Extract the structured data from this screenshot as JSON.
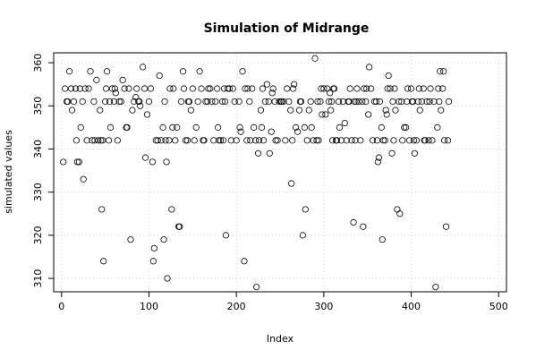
{
  "chart_data": {
    "type": "scatter",
    "title": "Simulation of Midrange",
    "xlabel": "Index",
    "ylabel": "simulated values",
    "xlim": [
      -9,
      509
    ],
    "ylim": [
      306.9,
      362.3
    ],
    "xticks": [
      0,
      100,
      200,
      300,
      400,
      500
    ],
    "yticks": [
      310,
      320,
      330,
      340,
      350,
      360
    ],
    "grid": true,
    "points": [
      [
        2,
        337
      ],
      [
        4,
        354
      ],
      [
        6,
        351
      ],
      [
        7,
        351
      ],
      [
        9,
        358
      ],
      [
        11,
        354
      ],
      [
        12,
        349
      ],
      [
        14,
        351
      ],
      [
        16,
        354
      ],
      [
        17,
        342
      ],
      [
        18,
        337
      ],
      [
        20,
        337
      ],
      [
        21,
        354
      ],
      [
        22,
        345
      ],
      [
        24,
        351
      ],
      [
        25,
        333
      ],
      [
        27,
        354
      ],
      [
        29,
        342
      ],
      [
        31,
        354
      ],
      [
        33,
        358
      ],
      [
        35,
        342
      ],
      [
        37,
        351
      ],
      [
        38,
        342
      ],
      [
        40,
        356
      ],
      [
        42,
        342
      ],
      [
        44,
        349
      ],
      [
        45,
        342
      ],
      [
        46,
        326
      ],
      [
        47,
        342
      ],
      [
        48,
        314
      ],
      [
        50,
        351
      ],
      [
        51,
        354
      ],
      [
        52,
        358
      ],
      [
        54,
        342
      ],
      [
        55,
        351
      ],
      [
        56,
        345
      ],
      [
        58,
        354
      ],
      [
        60,
        351
      ],
      [
        61,
        354
      ],
      [
        62,
        353
      ],
      [
        64,
        342
      ],
      [
        66,
        351
      ],
      [
        68,
        351
      ],
      [
        70,
        356
      ],
      [
        72,
        354
      ],
      [
        74,
        345
      ],
      [
        75,
        345
      ],
      [
        77,
        354
      ],
      [
        79,
        319
      ],
      [
        81,
        349
      ],
      [
        83,
        351
      ],
      [
        85,
        352
      ],
      [
        86,
        354
      ],
      [
        88,
        351
      ],
      [
        89,
        351
      ],
      [
        90,
        350
      ],
      [
        93,
        359
      ],
      [
        95,
        354
      ],
      [
        96,
        338
      ],
      [
        98,
        348
      ],
      [
        100,
        351
      ],
      [
        102,
        354
      ],
      [
        104,
        337
      ],
      [
        105,
        314
      ],
      [
        106,
        317
      ],
      [
        108,
        342
      ],
      [
        110,
        342
      ],
      [
        112,
        357
      ],
      [
        114,
        342
      ],
      [
        116,
        345
      ],
      [
        117,
        319
      ],
      [
        118,
        351
      ],
      [
        119,
        342
      ],
      [
        120,
        337
      ],
      [
        121,
        310
      ],
      [
        123,
        342
      ],
      [
        124,
        354
      ],
      [
        126,
        326
      ],
      [
        127,
        345
      ],
      [
        128,
        354
      ],
      [
        130,
        342
      ],
      [
        132,
        345
      ],
      [
        134,
        322
      ],
      [
        135,
        322
      ],
      [
        137,
        351
      ],
      [
        139,
        358
      ],
      [
        140,
        354
      ],
      [
        142,
        342
      ],
      [
        144,
        342
      ],
      [
        145,
        351
      ],
      [
        146,
        351
      ],
      [
        148,
        349
      ],
      [
        150,
        354
      ],
      [
        152,
        342
      ],
      [
        154,
        345
      ],
      [
        156,
        351
      ],
      [
        158,
        358
      ],
      [
        160,
        354
      ],
      [
        162,
        342
      ],
      [
        163,
        342
      ],
      [
        165,
        351
      ],
      [
        167,
        351
      ],
      [
        168,
        354
      ],
      [
        170,
        354
      ],
      [
        172,
        351
      ],
      [
        174,
        342
      ],
      [
        176,
        351
      ],
      [
        178,
        354
      ],
      [
        179,
        345
      ],
      [
        180,
        342
      ],
      [
        182,
        342
      ],
      [
        184,
        351
      ],
      [
        185,
        342
      ],
      [
        186,
        354
      ],
      [
        187,
        351
      ],
      [
        188,
        320
      ],
      [
        190,
        354
      ],
      [
        192,
        354
      ],
      [
        194,
        342
      ],
      [
        196,
        354
      ],
      [
        198,
        351
      ],
      [
        200,
        342
      ],
      [
        203,
        351
      ],
      [
        204,
        345
      ],
      [
        205,
        344
      ],
      [
        207,
        358
      ],
      [
        209,
        314
      ],
      [
        210,
        354
      ],
      [
        212,
        342
      ],
      [
        213,
        354
      ],
      [
        215,
        351
      ],
      [
        216,
        342
      ],
      [
        218,
        354
      ],
      [
        220,
        345
      ],
      [
        222,
        342
      ],
      [
        223,
        308
      ],
      [
        225,
        339
      ],
      [
        226,
        342
      ],
      [
        228,
        349
      ],
      [
        229,
        345
      ],
      [
        230,
        354
      ],
      [
        231,
        342
      ],
      [
        233,
        351
      ],
      [
        235,
        355
      ],
      [
        237,
        351
      ],
      [
        238,
        339
      ],
      [
        240,
        344
      ],
      [
        241,
        353
      ],
      [
        242,
        354
      ],
      [
        244,
        351
      ],
      [
        245,
        342
      ],
      [
        247,
        342
      ],
      [
        249,
        351
      ],
      [
        251,
        351
      ],
      [
        252,
        351
      ],
      [
        254,
        351
      ],
      [
        256,
        342
      ],
      [
        258,
        354
      ],
      [
        260,
        351
      ],
      [
        262,
        349
      ],
      [
        263,
        332
      ],
      [
        264,
        342
      ],
      [
        265,
        354
      ],
      [
        266,
        355
      ],
      [
        268,
        345
      ],
      [
        270,
        344
      ],
      [
        272,
        349
      ],
      [
        273,
        351
      ],
      [
        274,
        351
      ],
      [
        276,
        320
      ],
      [
        278,
        345
      ],
      [
        279,
        326
      ],
      [
        281,
        342
      ],
      [
        283,
        349
      ],
      [
        285,
        351
      ],
      [
        286,
        345
      ],
      [
        288,
        342
      ],
      [
        290,
        361
      ],
      [
        292,
        342
      ],
      [
        293,
        351
      ],
      [
        294,
        342
      ],
      [
        296,
        351
      ],
      [
        297,
        354
      ],
      [
        298,
        348
      ],
      [
        300,
        354
      ],
      [
        302,
        348
      ],
      [
        304,
        354
      ],
      [
        306,
        351
      ],
      [
        307,
        353
      ],
      [
        308,
        349
      ],
      [
        309,
        351
      ],
      [
        310,
        342
      ],
      [
        311,
        354
      ],
      [
        312,
        354
      ],
      [
        314,
        342
      ],
      [
        315,
        342
      ],
      [
        317,
        351
      ],
      [
        318,
        345
      ],
      [
        320,
        342
      ],
      [
        322,
        351
      ],
      [
        324,
        346
      ],
      [
        326,
        342
      ],
      [
        328,
        351
      ],
      [
        329,
        351
      ],
      [
        330,
        354
      ],
      [
        332,
        342
      ],
      [
        334,
        323
      ],
      [
        335,
        351
      ],
      [
        336,
        342
      ],
      [
        337,
        351
      ],
      [
        338,
        354
      ],
      [
        340,
        351
      ],
      [
        342,
        342
      ],
      [
        344,
        351
      ],
      [
        345,
        322
      ],
      [
        346,
        354
      ],
      [
        348,
        351
      ],
      [
        349,
        354
      ],
      [
        351,
        348
      ],
      [
        352,
        359
      ],
      [
        354,
        354
      ],
      [
        356,
        342
      ],
      [
        358,
        351
      ],
      [
        360,
        351
      ],
      [
        361,
        342
      ],
      [
        362,
        337
      ],
      [
        363,
        338
      ],
      [
        364,
        351
      ],
      [
        366,
        345
      ],
      [
        367,
        319
      ],
      [
        368,
        342
      ],
      [
        370,
        342
      ],
      [
        371,
        349
      ],
      [
        372,
        348
      ],
      [
        373,
        354
      ],
      [
        374,
        357
      ],
      [
        376,
        354
      ],
      [
        378,
        339
      ],
      [
        379,
        351
      ],
      [
        380,
        342
      ],
      [
        381,
        354
      ],
      [
        382,
        349
      ],
      [
        384,
        326
      ],
      [
        386,
        351
      ],
      [
        387,
        325
      ],
      [
        389,
        351
      ],
      [
        390,
        342
      ],
      [
        392,
        345
      ],
      [
        394,
        345
      ],
      [
        395,
        351
      ],
      [
        396,
        354
      ],
      [
        398,
        342
      ],
      [
        400,
        354
      ],
      [
        401,
        351
      ],
      [
        402,
        351
      ],
      [
        403,
        342
      ],
      [
        404,
        339
      ],
      [
        406,
        342
      ],
      [
        408,
        351
      ],
      [
        409,
        354
      ],
      [
        410,
        349
      ],
      [
        412,
        351
      ],
      [
        414,
        354
      ],
      [
        415,
        342
      ],
      [
        416,
        342
      ],
      [
        418,
        351
      ],
      [
        420,
        342
      ],
      [
        421,
        351
      ],
      [
        422,
        354
      ],
      [
        424,
        342
      ],
      [
        426,
        351
      ],
      [
        428,
        308
      ],
      [
        430,
        345
      ],
      [
        431,
        354
      ],
      [
        432,
        351
      ],
      [
        433,
        358
      ],
      [
        434,
        349
      ],
      [
        436,
        354
      ],
      [
        437,
        358
      ],
      [
        438,
        342
      ],
      [
        440,
        322
      ],
      [
        442,
        342
      ],
      [
        443,
        351
      ]
    ]
  }
}
